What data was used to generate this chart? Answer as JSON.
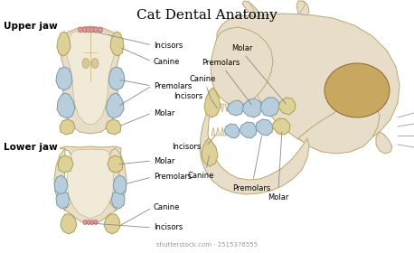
{
  "title": "Cat Dental Anatomy",
  "title_fontsize": 11,
  "background_color": "#ffffff",
  "upper_jaw_label": "Upper jaw",
  "lower_jaw_label": "Lower jaw",
  "bone_color": "#e8ddc8",
  "bone_edge": "#b8a870",
  "bone_inner": "#f2ead8",
  "bone_inner_edge": "#c8b880",
  "blue_tooth_color": "#b8cedd",
  "blue_tooth_edge": "#7898aa",
  "yellow_tooth_color": "#ddd098",
  "yellow_tooth_edge": "#aaa050",
  "red_incisor_color": "#e09898",
  "red_incisor_edge": "#b06868",
  "skull_fill": "#e8ddc8",
  "skull_edge": "#b8a870",
  "eye_fill": "#c8a860",
  "eye_edge": "#906830",
  "annotation_fontsize": 6.0,
  "label_fontsize": 7.5,
  "watermark": "shutterstock.com · 2515376555"
}
